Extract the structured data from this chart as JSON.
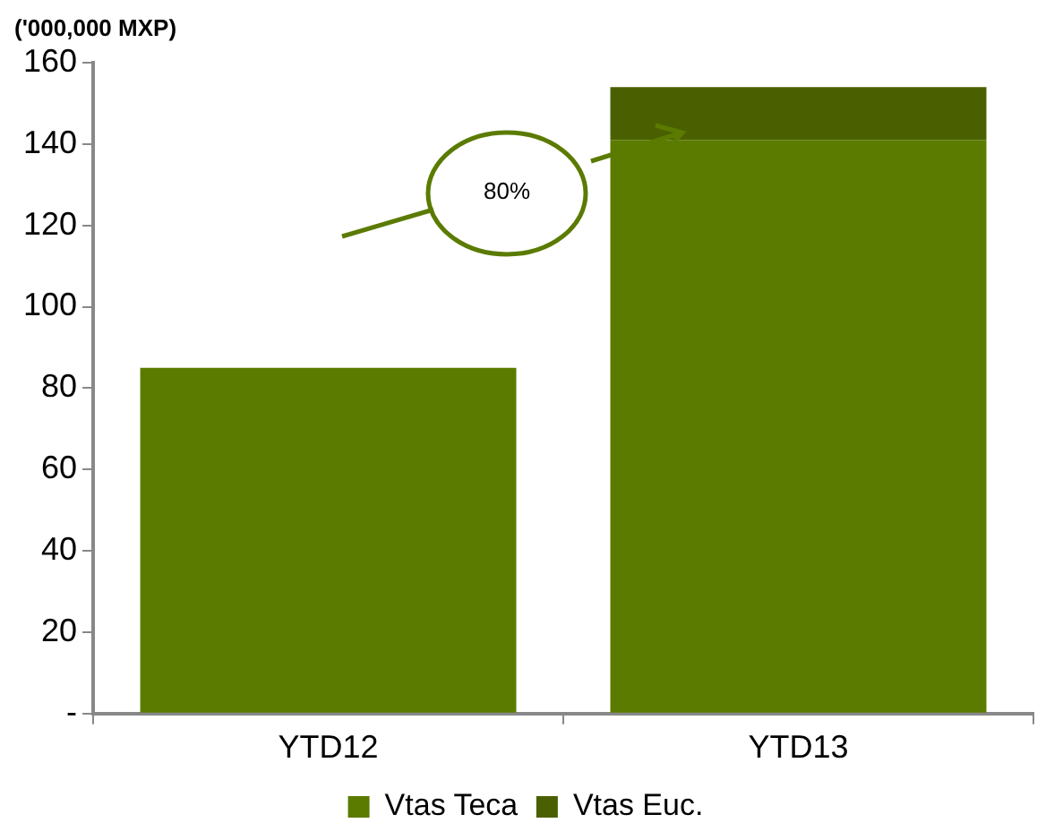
{
  "chart_data": {
    "type": "bar",
    "ylabel": "('000,000 MXP)",
    "categories": [
      "YTD12",
      "YTD13"
    ],
    "series": [
      {
        "name": "Vtas Teca",
        "color": "#5b7b00",
        "values": [
          85,
          141
        ]
      },
      {
        "name": "Vtas Euc.",
        "color": "#4a6000",
        "values": [
          0,
          13
        ]
      }
    ],
    "stacked": true,
    "ylim": [
      0,
      160
    ],
    "yticks": [
      {
        "value": 0,
        "label": "-"
      },
      20,
      40,
      60,
      80,
      100,
      120,
      140,
      160
    ],
    "grid": false,
    "legend": "bottom",
    "annotations": [
      "80%"
    ]
  }
}
